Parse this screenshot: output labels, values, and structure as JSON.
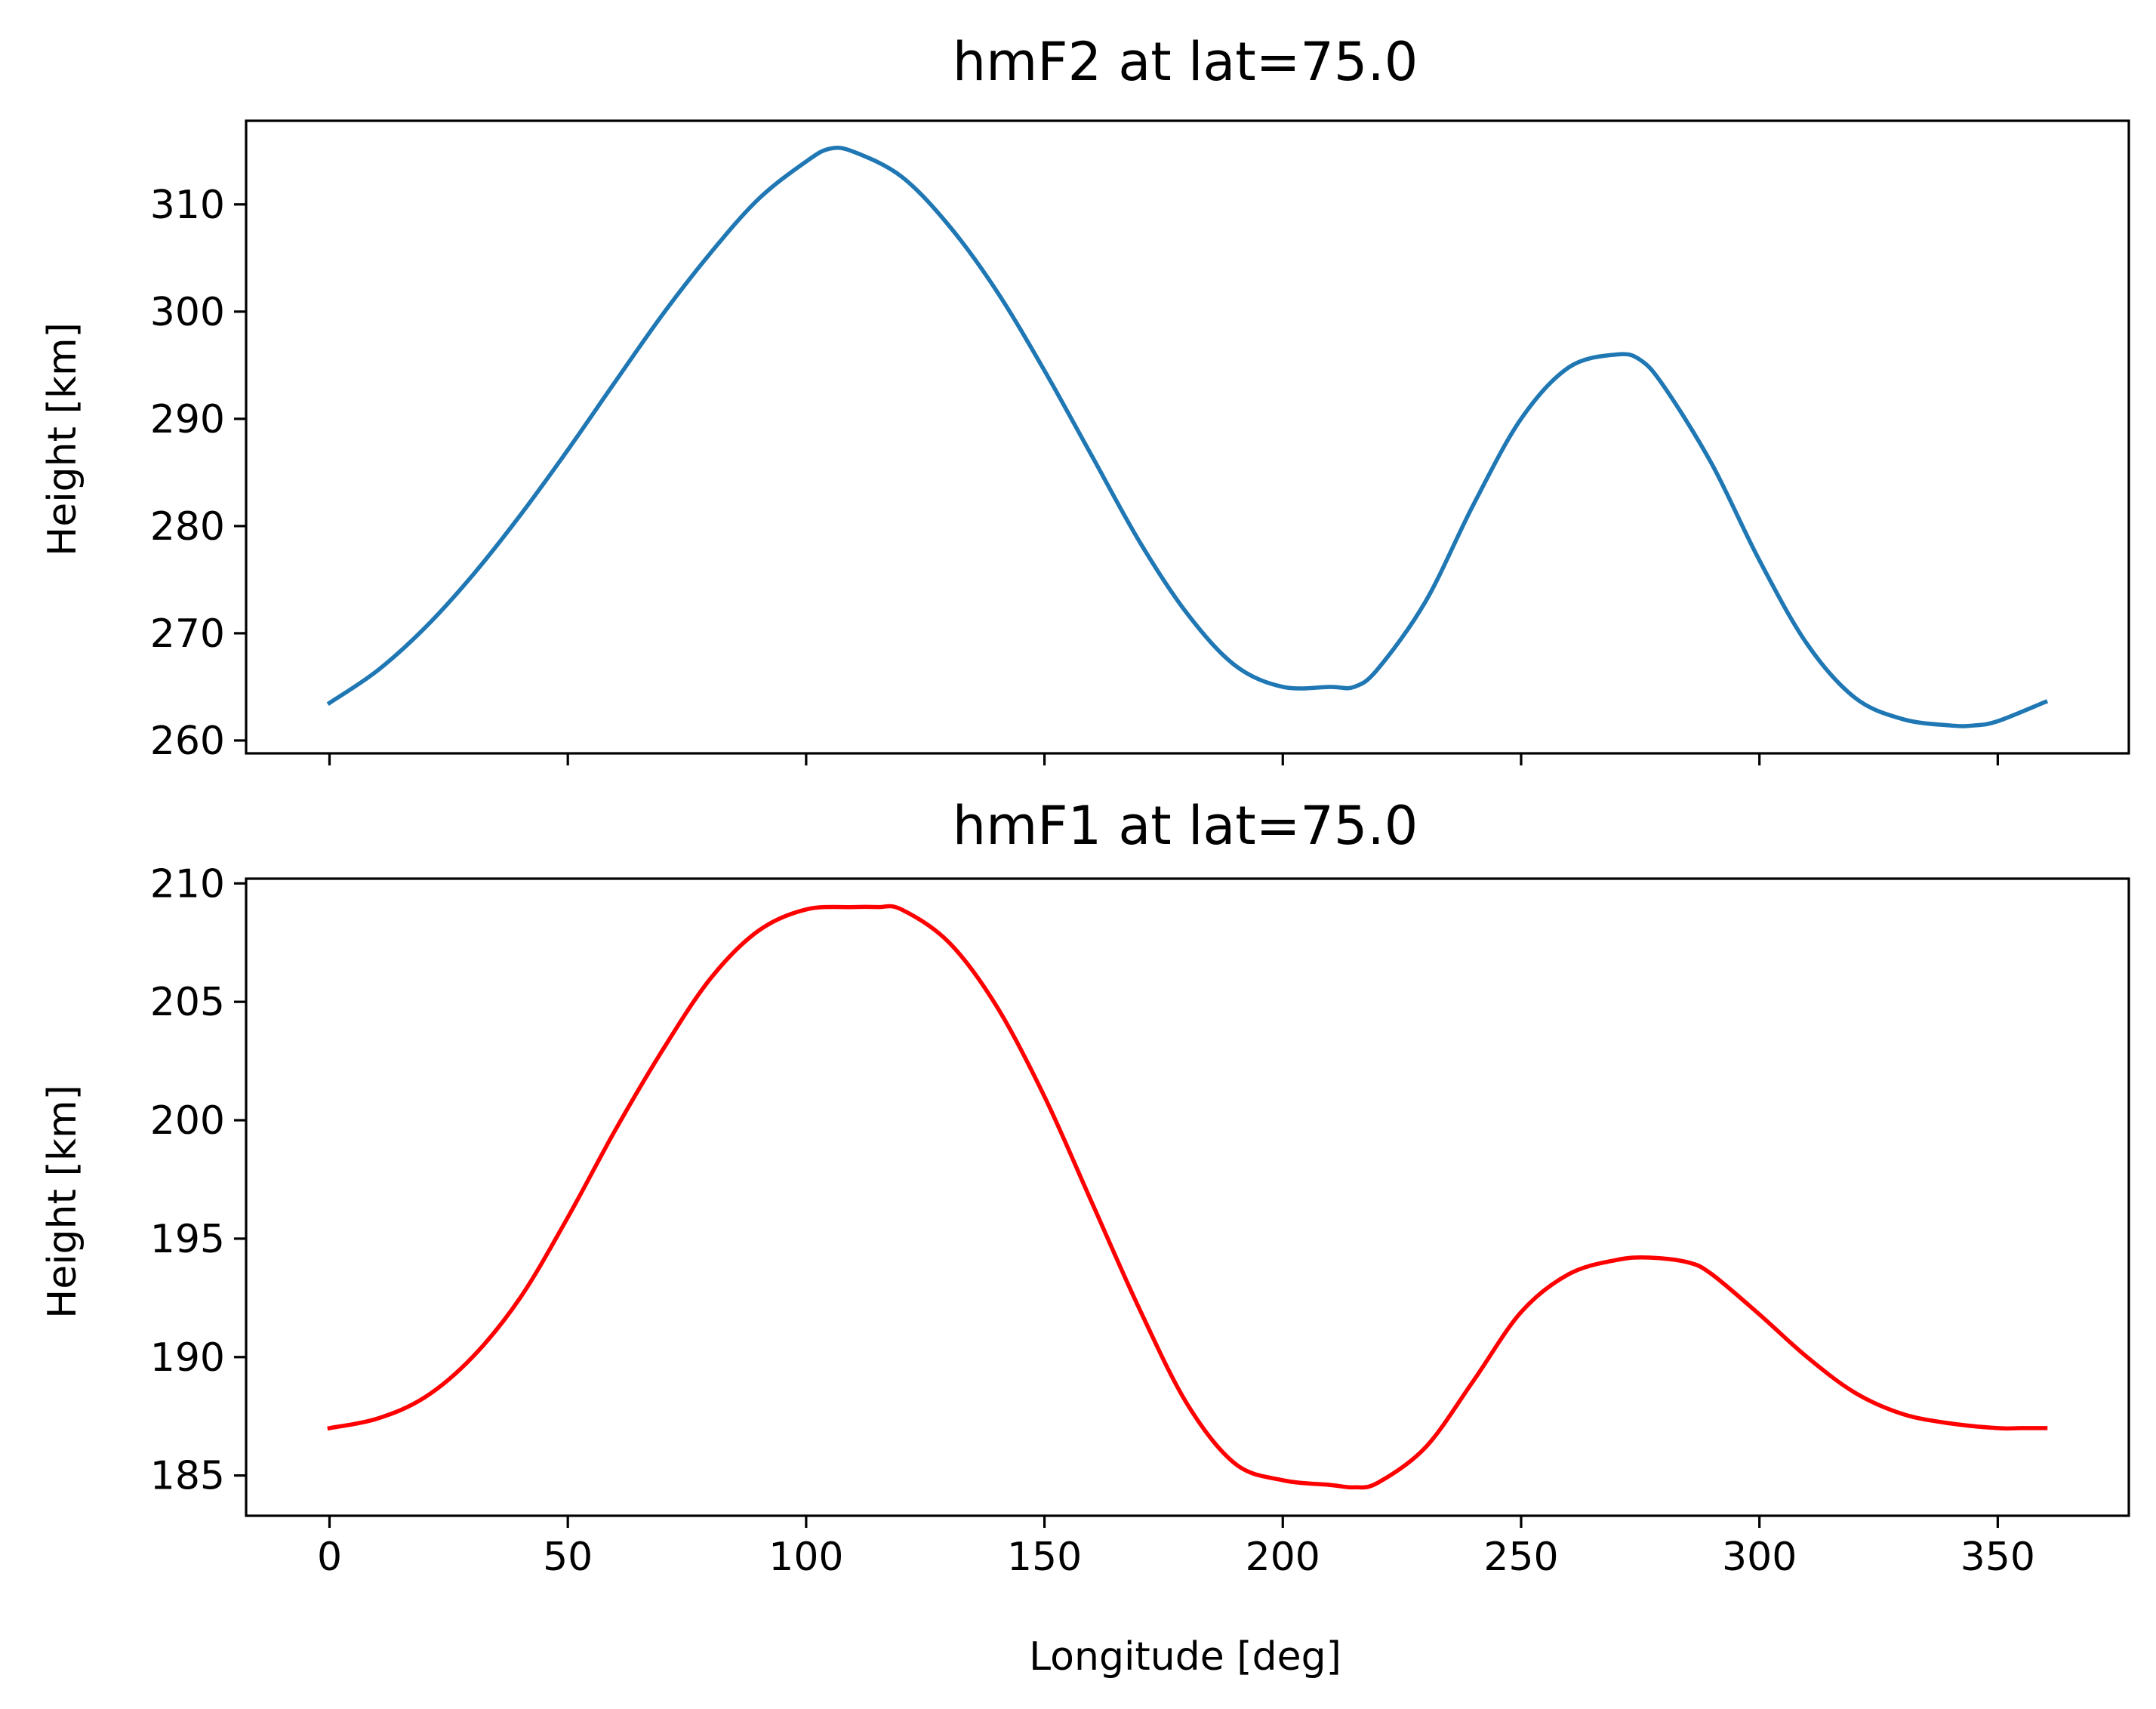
{
  "chart_data": [
    {
      "type": "line",
      "title": "hmF2 at lat=75.0",
      "xlabel": "",
      "ylabel": "Height [km]",
      "xlim": [
        -17.5,
        377.5
      ],
      "ylim": [
        258.8,
        317.8
      ],
      "xticks": [
        0,
        50,
        100,
        150,
        200,
        250,
        300,
        350
      ],
      "xtick_labels_visible": false,
      "yticks": [
        260,
        270,
        280,
        290,
        300,
        310
      ],
      "grid": false,
      "color": "#1f77b4",
      "x": [
        0,
        10,
        20,
        30,
        40,
        50,
        60,
        70,
        80,
        90,
        100,
        105,
        110,
        120,
        130,
        140,
        150,
        160,
        170,
        180,
        190,
        200,
        210,
        215,
        220,
        230,
        240,
        250,
        260,
        270,
        275,
        280,
        290,
        300,
        310,
        320,
        330,
        340,
        345,
        350,
        360
      ],
      "values": [
        263.5,
        266.5,
        270.5,
        275.4,
        281.0,
        287.1,
        293.5,
        299.8,
        305.5,
        310.5,
        314.0,
        315.2,
        314.9,
        312.6,
        308.0,
        301.9,
        294.5,
        286.5,
        278.5,
        271.8,
        267.0,
        265.0,
        265.0,
        265.0,
        266.7,
        273.0,
        282.0,
        290.0,
        294.8,
        296.0,
        295.5,
        293.0,
        285.8,
        276.8,
        269.0,
        264.0,
        262.0,
        261.4,
        261.4,
        261.8,
        263.6
      ]
    },
    {
      "type": "line",
      "title": "hmF1 at lat=75.0",
      "xlabel": "Longitude [deg]",
      "ylabel": "Height [km]",
      "xlim": [
        -17.5,
        377.5
      ],
      "ylim": [
        183.3,
        210.2
      ],
      "xticks": [
        0,
        50,
        100,
        150,
        200,
        250,
        300,
        350
      ],
      "yticks": [
        185,
        190,
        195,
        200,
        205,
        210
      ],
      "grid": false,
      "color": "#ff0000",
      "x": [
        0,
        10,
        20,
        30,
        40,
        50,
        60,
        70,
        80,
        90,
        100,
        110,
        115,
        120,
        130,
        140,
        150,
        160,
        170,
        180,
        190,
        200,
        210,
        215,
        220,
        230,
        240,
        250,
        260,
        270,
        277,
        285,
        290,
        300,
        310,
        320,
        330,
        340,
        350,
        355,
        360
      ],
      "values": [
        187.0,
        187.4,
        188.3,
        190.0,
        192.5,
        195.9,
        199.6,
        203.0,
        206.0,
        208.0,
        208.9,
        209.0,
        209.0,
        208.9,
        207.5,
        204.8,
        201.0,
        196.5,
        192.0,
        188.0,
        185.5,
        184.8,
        184.6,
        184.5,
        184.7,
        186.2,
        189.0,
        191.9,
        193.5,
        194.1,
        194.2,
        194.0,
        193.5,
        191.8,
        190.0,
        188.5,
        187.6,
        187.2,
        187.0,
        187.0,
        187.0
      ]
    }
  ]
}
